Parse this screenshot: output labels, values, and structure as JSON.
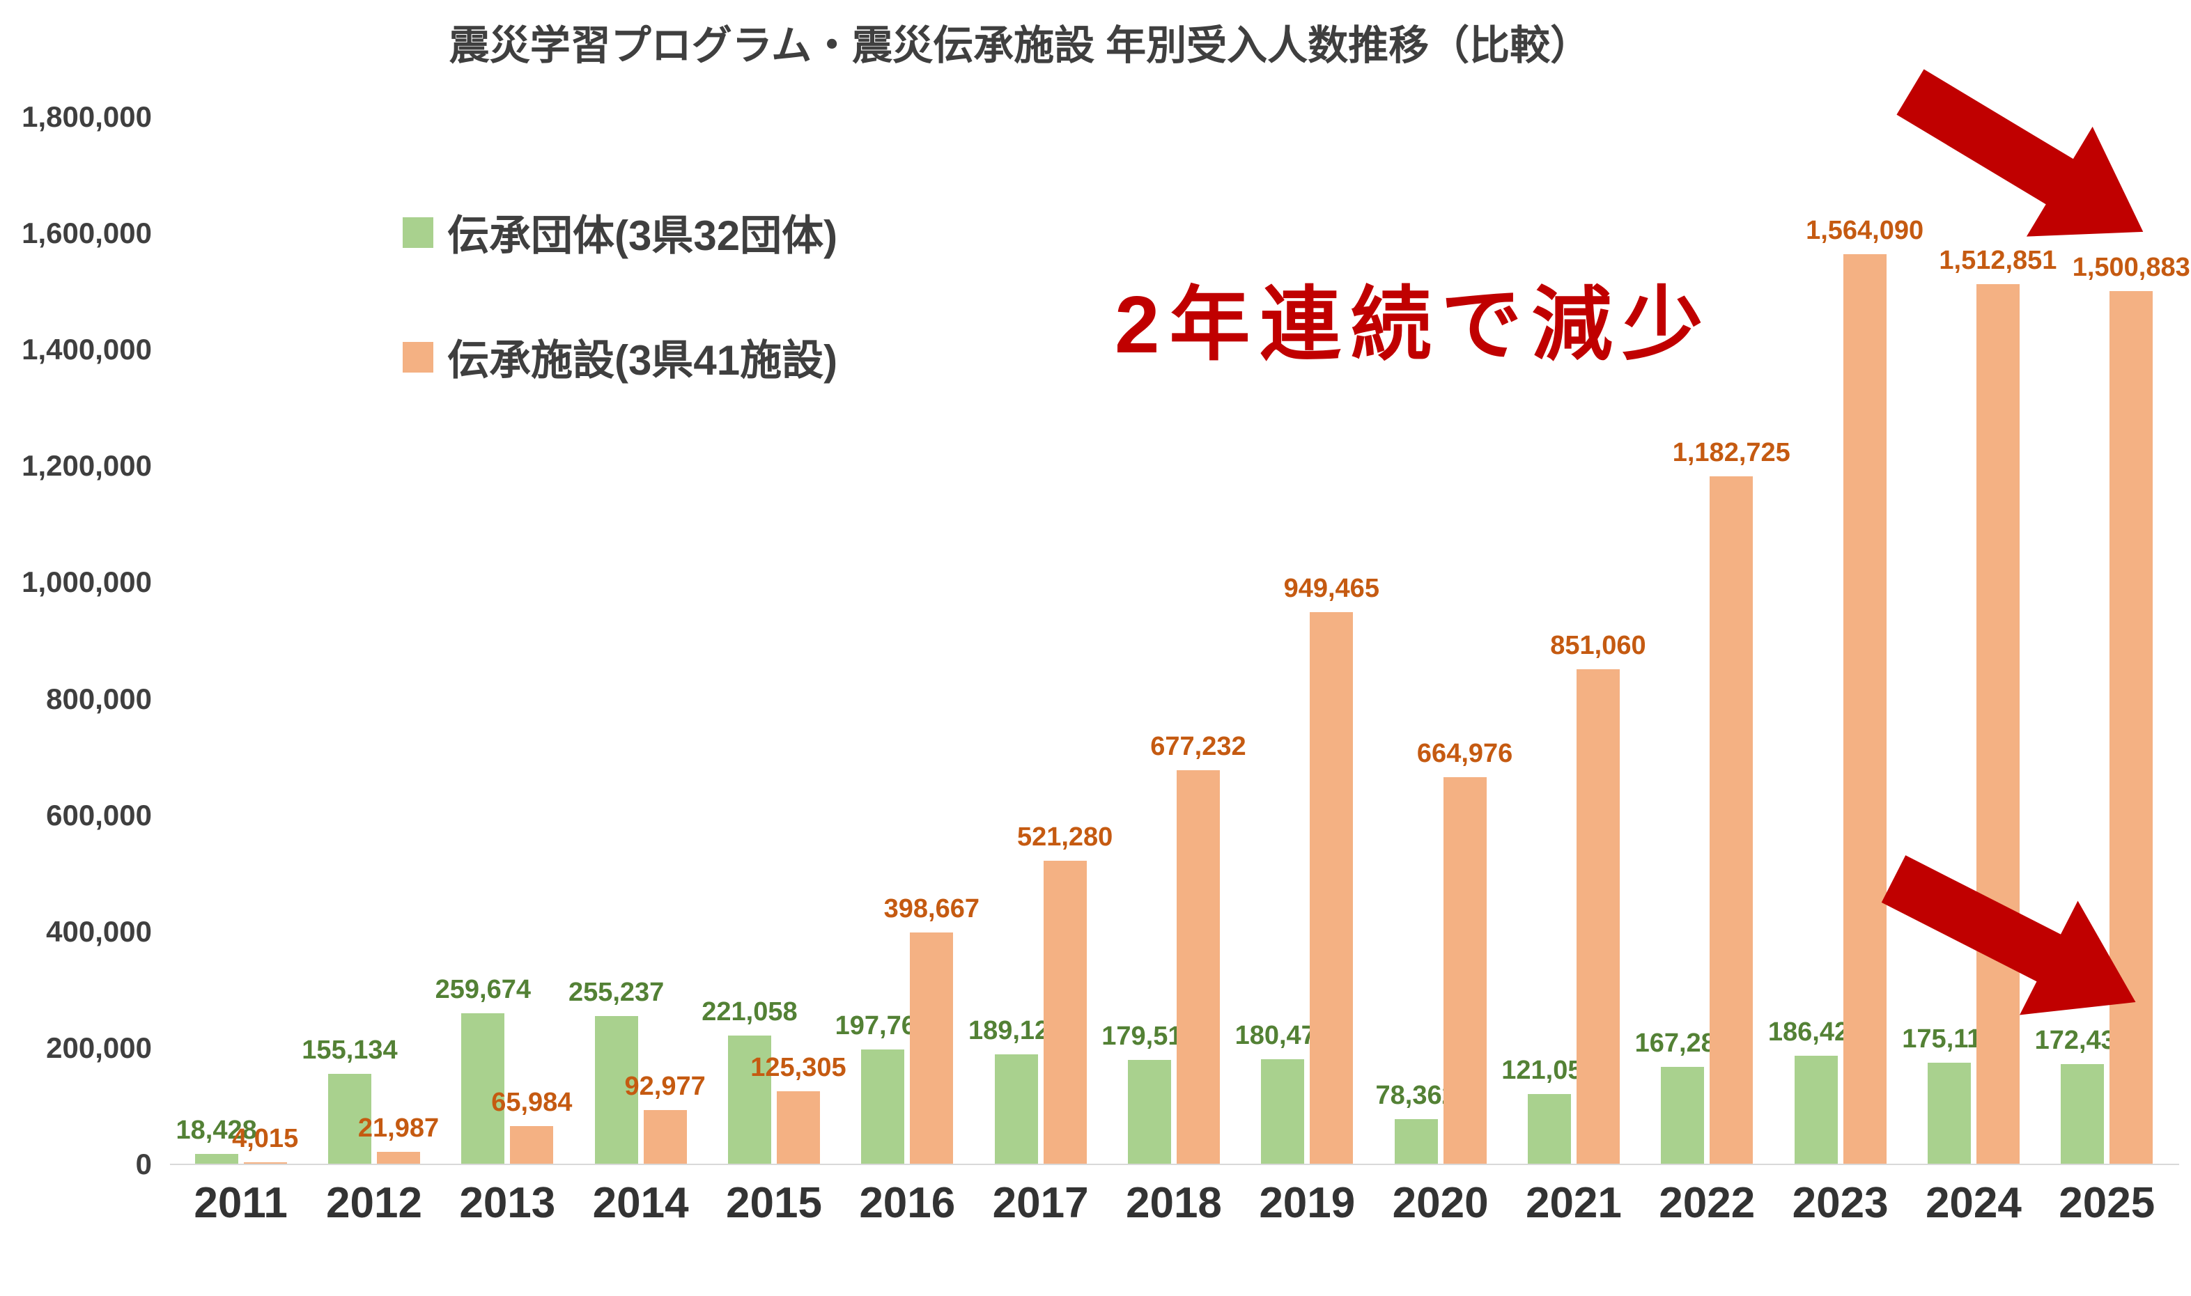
{
  "title": "震災学習プログラム・震災伝承施設 年別受入人数推移（比較）",
  "legend": {
    "items": [
      {
        "label": "伝承団体(3県32団体)",
        "color": "#a9d18e"
      },
      {
        "label": "伝承施設(3県41施設)",
        "color": "#f4b183"
      }
    ]
  },
  "annotation": {
    "text": "2年連続で減少",
    "color": "#c00000",
    "arrow_color": "#c00000"
  },
  "colors": {
    "background": "#ffffff",
    "axis_text": "#3f3f3f",
    "green_bar": "#a9d18e",
    "green_label": "#538135",
    "orange_bar": "#f4b183",
    "orange_label": "#c55a11",
    "red_accent": "#c00000"
  },
  "chart_data": {
    "type": "bar",
    "title": "震災学習プログラム・震災伝承施設 年別受入人数推移（比較）",
    "xlabel": "",
    "ylabel": "",
    "grid": false,
    "legend_position": "upper-left-inside",
    "categories": [
      "2011",
      "2012",
      "2013",
      "2014",
      "2015",
      "2016",
      "2017",
      "2018",
      "2019",
      "2020",
      "2021",
      "2022",
      "2023",
      "2024",
      "2025"
    ],
    "series": [
      {
        "name": "伝承団体(3県32団体)",
        "color": "#a9d18e",
        "label_color": "#538135",
        "values": [
          18428,
          155134,
          259674,
          255237,
          221058,
          197766,
          189128,
          179518,
          180479,
          78362,
          121054,
          167285,
          186423,
          175119,
          172433
        ]
      },
      {
        "name": "伝承施設(3県41施設)",
        "color": "#f4b183",
        "label_color": "#c55a11",
        "values": [
          4015,
          21987,
          65984,
          92977,
          125305,
          398667,
          521280,
          677232,
          949465,
          664976,
          851060,
          1182725,
          1564090,
          1512851,
          1500883
        ]
      }
    ],
    "ylim": [
      0,
      1800000
    ],
    "ytick_step": 200000,
    "yticks": [
      0,
      200000,
      400000,
      600000,
      800000,
      1000000,
      1200000,
      1400000,
      1600000,
      1800000
    ],
    "annotations": [
      "2年連続で減少"
    ]
  }
}
